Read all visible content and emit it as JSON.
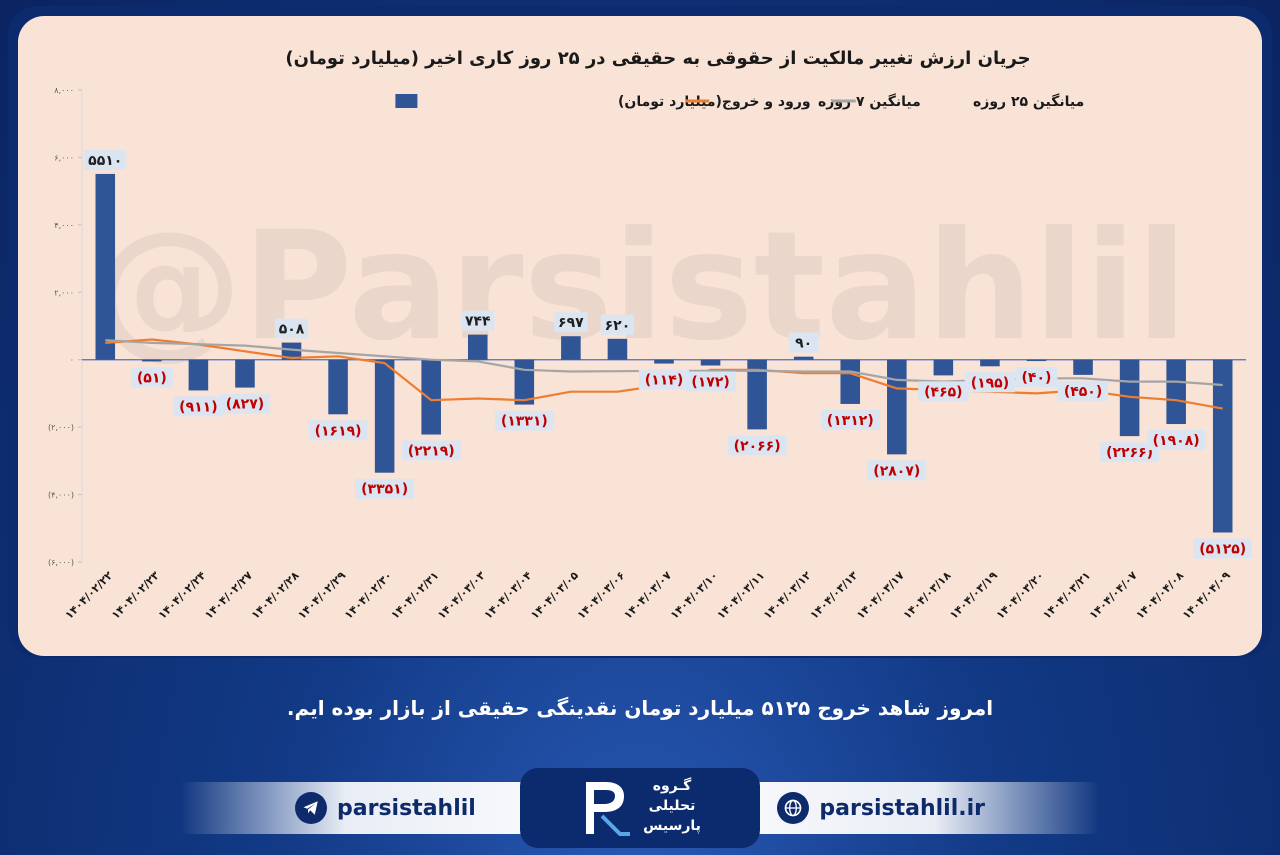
{
  "caption": "امروز شاهد خروج ۵۱۲۵ میلیارد تومان نقدینگی حقیقی از بازار بوده ایم.",
  "footer": {
    "telegram_handle": "parsistahlil",
    "website": "parsistahlil.ir",
    "logo_line1": "گـروه",
    "logo_line2": "تحلیلی",
    "logo_line3": "پارسیس",
    "watermark": "@Parsistahlil"
  },
  "colors": {
    "bar": "#2f5597",
    "avg7": "#ed7d31",
    "avg25": "#a5a5a5",
    "negative_label": "#c00000",
    "panel_bg": "#f9e3d6",
    "frame": "#0c2a6e"
  },
  "chart_data": {
    "type": "bar",
    "title": "جریان ارزش تغییر مالکیت از حقوقی به حقیقی در ۲۵ روز کاری اخیر (میلیارد تومان)",
    "legend": [
      "ورود و خروج(میلیارد تومان)",
      "میانگین ۷ روزه",
      "میانگین ۲۵ روزه"
    ],
    "legend_position": "top",
    "ylim": [
      -6000,
      8000
    ],
    "yticks": [
      8000,
      6000,
      4000,
      2000,
      0,
      -2000,
      -4000,
      -6000
    ],
    "ytick_labels": [
      "۸,۰۰۰",
      "۶,۰۰۰",
      "۴,۰۰۰",
      "۲,۰۰۰",
      "۰",
      "(۲,۰۰۰)",
      "(۴,۰۰۰)",
      "(۶,۰۰۰)"
    ],
    "categories": [
      "۱۴۰۴/۰۲/۲۲",
      "۱۴۰۴/۰۲/۲۳",
      "۱۴۰۴/۰۲/۲۴",
      "۱۴۰۴/۰۲/۲۷",
      "۱۴۰۴/۰۲/۲۸",
      "۱۴۰۴/۰۲/۲۹",
      "۱۴۰۴/۰۲/۳۰",
      "۱۴۰۴/۰۲/۳۱",
      "۱۴۰۴/۰۳/۰۳",
      "۱۴۰۴/۰۳/۰۴",
      "۱۴۰۴/۰۳/۰۵",
      "۱۴۰۴/۰۳/۰۶",
      "۱۴۰۴/۰۳/۰۷",
      "۱۴۰۴/۰۳/۱۰",
      "۱۴۰۴/۰۳/۱۱",
      "۱۴۰۴/۰۳/۱۲",
      "۱۴۰۴/۰۳/۱۳",
      "۱۴۰۴/۰۳/۱۷",
      "۱۴۰۴/۰۳/۱۸",
      "۱۴۰۴/۰۳/۱۹",
      "۱۴۰۴/۰۳/۲۰",
      "۱۴۰۴/۰۳/۲۱",
      "۱۴۰۴/۰۴/۰۷",
      "۱۴۰۴/۰۴/۰۸",
      "۱۴۰۴/۰۴/۰۹"
    ],
    "series": [
      {
        "name": "ورود و خروج(میلیارد تومان)",
        "values": [
          5510,
          -51,
          -911,
          -827,
          508,
          -1619,
          -3351,
          -2219,
          744,
          -1331,
          697,
          620,
          -114,
          -172,
          -2066,
          90,
          -1312,
          -2807,
          -465,
          -195,
          -40,
          -450,
          -2266,
          -1908,
          -5125
        ],
        "labels": [
          "۵۵۱۰",
          "(۵۱)",
          "(۹۱۱)",
          "(۸۲۷)",
          "۵۰۸",
          "(۱۶۱۹)",
          "(۳۳۵۱)",
          "(۲۲۱۹)",
          "۷۴۴",
          "(۱۳۳۱)",
          "۶۹۷",
          "۶۲۰",
          "(۱۱۴)",
          "(۱۷۲)",
          "(۲۰۶۶)",
          "۹۰",
          "(۱۳۱۲)",
          "(۲۸۰۷)",
          "(۴۶۵)",
          "(۱۹۵)",
          "(۴۰)",
          "(۴۵۰)",
          "(۲۲۶۶)",
          "(۱۹۰۸)",
          "(۵۱۲۵)"
        ]
      },
      {
        "name": "میانگین ۷ روزه",
        "values": [
          500,
          600,
          450,
          250,
          50,
          100,
          -100,
          -1200,
          -1150,
          -1200,
          -950,
          -950,
          -750,
          -300,
          -300,
          -400,
          -400,
          -850,
          -900,
          -950,
          -1000,
          -900,
          -1100,
          -1200,
          -1450
        ]
      },
      {
        "name": "میانگین ۲۵ روزه",
        "values": [
          580,
          500,
          460,
          420,
          300,
          200,
          100,
          0,
          -50,
          -300,
          -350,
          -340,
          -330,
          -330,
          -330,
          -350,
          -350,
          -600,
          -650,
          -600,
          -550,
          -550,
          -650,
          -650,
          -750
        ]
      }
    ]
  }
}
